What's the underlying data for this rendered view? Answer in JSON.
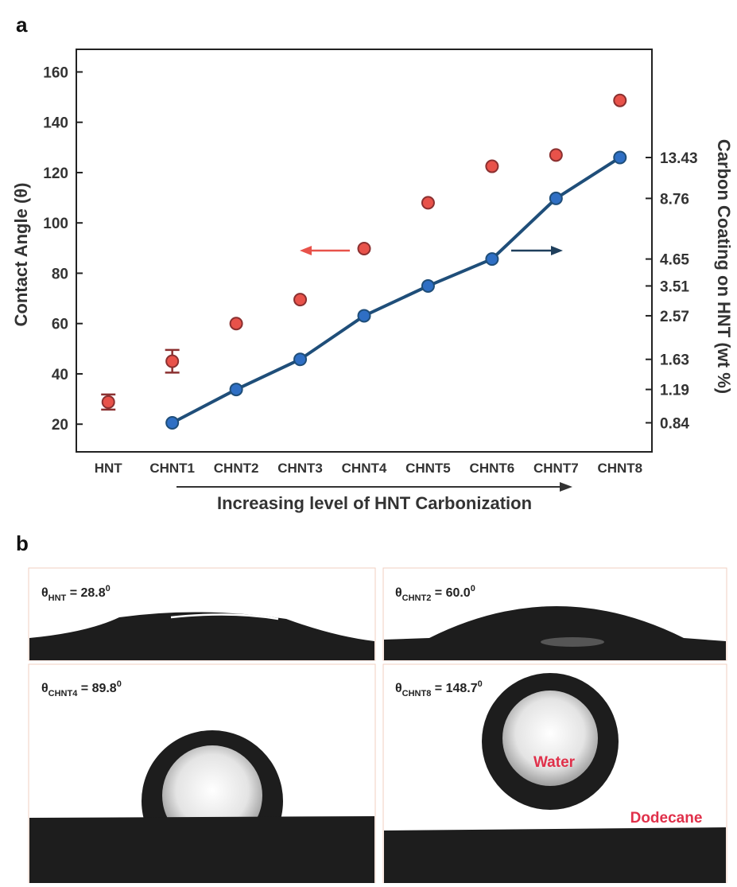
{
  "panel_labels": [
    "a",
    "b"
  ],
  "chart_data": {
    "type": "scatter",
    "xlabel": "Increasing level of HNT Carbonization",
    "ylabel": "Contact Angle (θ)",
    "y2label": "Carbon Coating on HNT (wt %)",
    "categories": [
      "HNT",
      "CHNT1",
      "CHNT2",
      "CHNT3",
      "CHNT4",
      "CHNT5",
      "CHNT6",
      "CHNT7",
      "CHNT8"
    ],
    "ylim": [
      9,
      169
    ],
    "yticks": [
      20,
      40,
      60,
      80,
      100,
      120,
      140,
      160
    ],
    "y2lim": [
      0.62,
      41.6
    ],
    "y2scale": "log",
    "y2ticks": [
      0.84,
      1.19,
      1.63,
      2.57,
      3.51,
      4.65,
      8.76,
      13.43
    ],
    "series": [
      {
        "color": "#e8524a",
        "values": [
          28.8,
          45,
          60.0,
          69.5,
          89.8,
          108,
          122.5,
          127,
          148.7
        ],
        "errors": [
          3,
          4.5,
          null,
          null,
          null,
          null,
          null,
          null,
          null
        ]
      },
      {
        "color": "#2f6fc4",
        "axis": "y2",
        "values": [
          null,
          0.84,
          1.19,
          1.63,
          2.57,
          3.51,
          4.65,
          8.76,
          13.43
        ]
      }
    ]
  },
  "photos": [
    {
      "symbol": "θ",
      "subscript": "HNT",
      "value": " = 28.8",
      "superscript": "0"
    },
    {
      "symbol": "θ",
      "subscript": "CHNT2",
      "value": " = 60.0",
      "superscript": "0"
    },
    {
      "symbol": "θ",
      "subscript": "CHNT4",
      "value": " = 89.8",
      "superscript": "0"
    },
    {
      "symbol": "θ",
      "subscript": "CHNT8",
      "value": " = 148.7",
      "superscript": "0",
      "inner_label": "Water",
      "outer_label": "Dodecane"
    }
  ]
}
